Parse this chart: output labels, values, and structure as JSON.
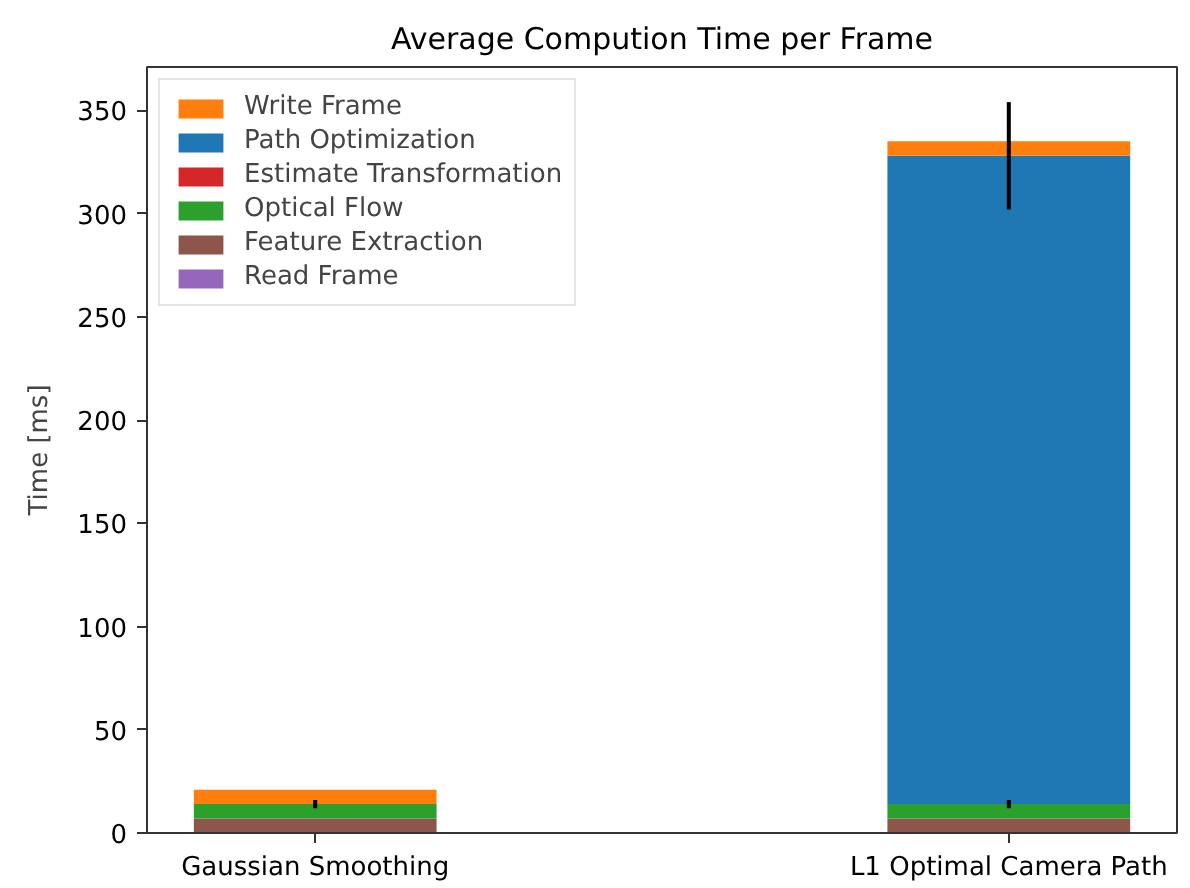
{
  "chart_data": {
    "type": "bar",
    "title": "Average Compution Time per Frame",
    "ylabel": "Time [ms]",
    "categories": [
      "Gaussian Smoothing",
      "L1 Optimal Camera Path"
    ],
    "stacked": true,
    "series": [
      {
        "name": "Read Frame",
        "color": "#9467bd",
        "values": [
          0,
          0
        ]
      },
      {
        "name": "Feature Extraction",
        "color": "#8c564b",
        "values": [
          7,
          7
        ]
      },
      {
        "name": "Optical Flow",
        "color": "#2ca02c",
        "values": [
          7,
          7
        ],
        "errors": [
          2,
          2
        ]
      },
      {
        "name": "Estimate Transformation",
        "color": "#d62728",
        "values": [
          0,
          0
        ]
      },
      {
        "name": "Path Optimization",
        "color": "#1f77b4",
        "values": [
          0,
          314
        ],
        "errors": [
          null,
          26
        ]
      },
      {
        "name": "Write Frame",
        "color": "#ff7f0e",
        "values": [
          7,
          7
        ]
      }
    ],
    "ylim": [
      0,
      371
    ],
    "yticks": [
      0,
      50,
      100,
      150,
      200,
      250,
      300,
      350
    ],
    "legend": "top left"
  }
}
